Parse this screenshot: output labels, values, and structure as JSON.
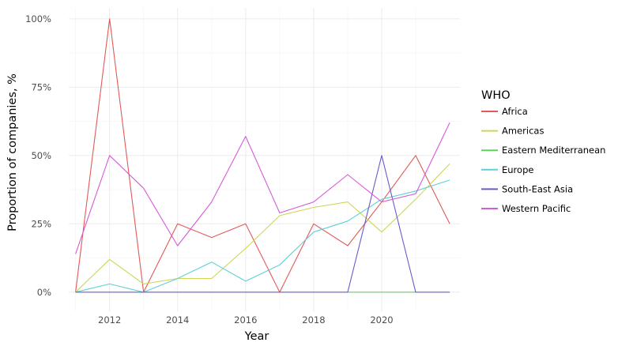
{
  "chart_data": {
    "type": "line",
    "xlabel": "Year",
    "ylabel": "Proportion of companies, %",
    "xlim": [
      2010.8,
      2022.3
    ],
    "ylim": [
      -0.07,
      1.04
    ],
    "x_ticks": [
      2012,
      2014,
      2016,
      2018,
      2020
    ],
    "x_tick_labels": [
      "2012",
      "2014",
      "2016",
      "2018",
      "2020"
    ],
    "y_ticks": [
      0,
      0.25,
      0.5,
      0.75,
      1.0
    ],
    "y_tick_labels": [
      "0%",
      "25%",
      "50%",
      "75%",
      "100%"
    ],
    "grid": true,
    "legend": {
      "title": "WHO",
      "placement": "right"
    },
    "series": [
      {
        "name": "Africa",
        "color": "#e05a57",
        "x": [
          2011,
          2012,
          2013,
          2014,
          2015,
          2016,
          2017,
          2018,
          2019,
          2020,
          2021,
          2022
        ],
        "values": [
          0,
          1.0,
          0,
          0.25,
          0.2,
          0.25,
          0,
          0.25,
          0.17,
          0.33,
          0.5,
          0.25
        ]
      },
      {
        "name": "Americas",
        "color": "#cfd555",
        "x": [
          2011,
          2012,
          2013,
          2014,
          2015,
          2016,
          2017,
          2018,
          2019,
          2020,
          2021,
          2022
        ],
        "values": [
          0,
          0.12,
          0.03,
          0.05,
          0.05,
          0.16,
          0.28,
          0.31,
          0.33,
          0.22,
          0.34,
          0.47
        ]
      },
      {
        "name": "Eastern Mediterranean",
        "color": "#5fd35f",
        "x": [
          2019,
          2020,
          2021
        ],
        "values": [
          0,
          0,
          0
        ]
      },
      {
        "name": "Europe",
        "color": "#5fd0d6",
        "x": [
          2011,
          2012,
          2013,
          2014,
          2015,
          2016,
          2017,
          2018,
          2019,
          2020,
          2021,
          2022
        ],
        "values": [
          0,
          0.03,
          0,
          0.05,
          0.11,
          0.04,
          0.1,
          0.22,
          0.26,
          0.34,
          0.37,
          0.41
        ]
      },
      {
        "name": "South-East Asia",
        "color": "#6a5acd",
        "x": [
          2011,
          2012,
          2013,
          2014,
          2015,
          2016,
          2017,
          2018,
          2019,
          2020,
          2021,
          2022
        ],
        "values": [
          0,
          0,
          0,
          0,
          0,
          0,
          0,
          0,
          0,
          0.5,
          0,
          0
        ]
      },
      {
        "name": "Western Pacific",
        "color": "#d65bd6",
        "x": [
          2011,
          2012,
          2013,
          2014,
          2015,
          2016,
          2017,
          2018,
          2019,
          2020,
          2021,
          2022
        ],
        "values": [
          0.14,
          0.5,
          0.38,
          0.17,
          0.33,
          0.57,
          0.29,
          0.33,
          0.43,
          0.33,
          0.36,
          0.62
        ]
      }
    ]
  }
}
